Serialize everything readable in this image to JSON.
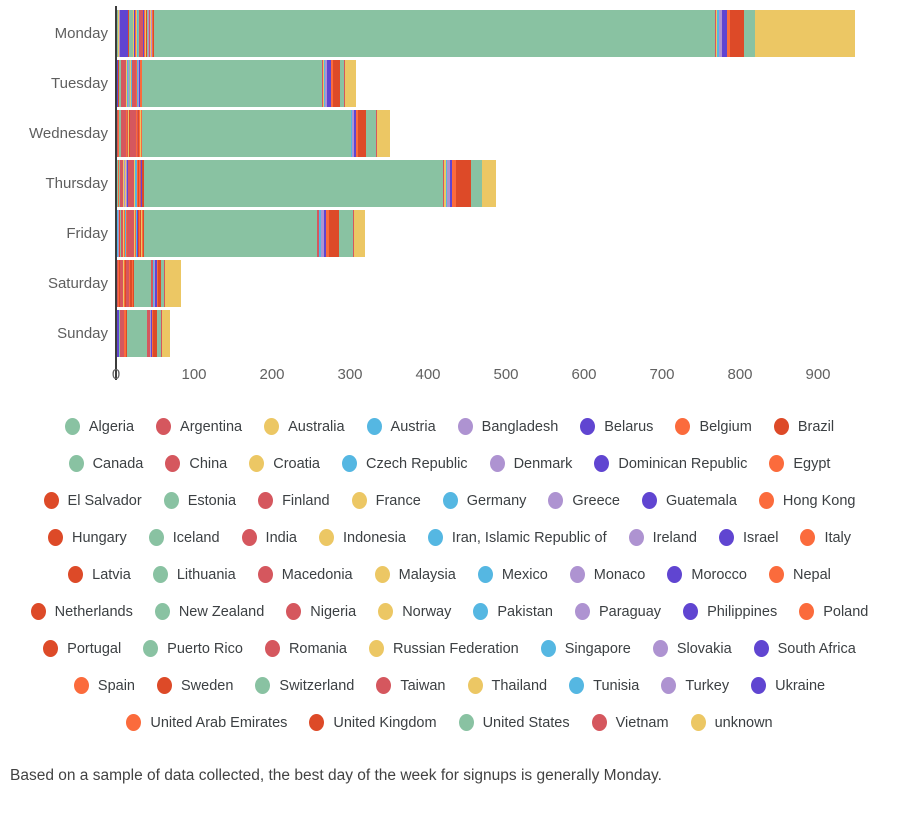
{
  "chart_data": {
    "type": "bar",
    "orientation": "horizontal",
    "stacked": true,
    "grid": false,
    "legend_position": "bottom",
    "categories": [
      "Monday",
      "Tuesday",
      "Wednesday",
      "Thursday",
      "Friday",
      "Saturday",
      "Sunday"
    ],
    "x_ticks": [
      0,
      100,
      200,
      300,
      400,
      500,
      600,
      700,
      800,
      900
    ],
    "xlim": [
      0,
      1000
    ],
    "day_totals_approx": [
      947,
      307,
      350,
      487,
      318,
      82,
      68
    ],
    "palette_cycle": [
      "#89C2A2",
      "#D5575E",
      "#ECC764",
      "#55B7E2",
      "#AE93D1",
      "#6045D1",
      "#FB6B3C",
      "#DD4A28"
    ],
    "series": [
      {
        "name": "Algeria",
        "color": "#89C2A2",
        "values": [
          1,
          0,
          0,
          1,
          0,
          0,
          0
        ]
      },
      {
        "name": "Argentina",
        "color": "#D5575E",
        "values": [
          0,
          0,
          1,
          0,
          0,
          1,
          0
        ]
      },
      {
        "name": "Australia",
        "color": "#ECC764",
        "values": [
          1,
          0,
          0,
          0,
          0,
          0,
          0
        ]
      },
      {
        "name": "Austria",
        "color": "#55B7E2",
        "values": [
          1,
          0,
          0,
          0,
          1,
          0,
          0
        ]
      },
      {
        "name": "Bangladesh",
        "color": "#AE93D1",
        "values": [
          1,
          0,
          0,
          0,
          1,
          0,
          0
        ]
      },
      {
        "name": "Belarus",
        "color": "#6045D1",
        "values": [
          10,
          1,
          0,
          0,
          0,
          0,
          2
        ]
      },
      {
        "name": "Belgium",
        "color": "#FB6B3C",
        "values": [
          0,
          0,
          1,
          1,
          1,
          1,
          0
        ]
      },
      {
        "name": "Brazil",
        "color": "#DD4A28",
        "values": [
          2,
          2,
          1,
          1,
          1,
          2,
          1
        ]
      },
      {
        "name": "Canada",
        "color": "#89C2A2",
        "values": [
          4,
          2,
          2,
          1,
          1,
          0,
          1
        ]
      },
      {
        "name": "China",
        "color": "#D5575E",
        "values": [
          1,
          7,
          6,
          4,
          3,
          4,
          2
        ]
      },
      {
        "name": "Croatia",
        "color": "#ECC764",
        "values": [
          1,
          1,
          1,
          1,
          1,
          1,
          0
        ]
      },
      {
        "name": "Czech Republic",
        "color": "#55B7E2",
        "values": [
          0,
          1,
          0,
          0,
          0,
          0,
          0
        ]
      },
      {
        "name": "Denmark",
        "color": "#AE93D1",
        "values": [
          0,
          1,
          0,
          1,
          0,
          0,
          0
        ]
      },
      {
        "name": "Dominican Republic",
        "color": "#6045D1",
        "values": [
          1,
          0,
          0,
          0,
          0,
          0,
          0
        ]
      },
      {
        "name": "Egypt",
        "color": "#FB6B3C",
        "values": [
          1,
          1,
          1,
          1,
          1,
          1,
          0
        ]
      },
      {
        "name": "El Salvador",
        "color": "#DD4A28",
        "values": [
          1,
          0,
          0,
          0,
          0,
          0,
          0
        ]
      },
      {
        "name": "Estonia",
        "color": "#89C2A2",
        "values": [
          0,
          1,
          0,
          0,
          0,
          0,
          0
        ]
      },
      {
        "name": "Finland",
        "color": "#D5575E",
        "values": [
          0,
          0,
          1,
          0,
          0,
          0,
          0
        ]
      },
      {
        "name": "France",
        "color": "#ECC764",
        "values": [
          1,
          1,
          2,
          1,
          1,
          1,
          1
        ]
      },
      {
        "name": "Germany",
        "color": "#55B7E2",
        "values": [
          1,
          1,
          0,
          0,
          1,
          0,
          0
        ]
      },
      {
        "name": "Greece",
        "color": "#AE93D1",
        "values": [
          0,
          0,
          0,
          1,
          0,
          0,
          0
        ]
      },
      {
        "name": "Guatemala",
        "color": "#6045D1",
        "values": [
          0,
          0,
          0,
          1,
          0,
          0,
          0
        ]
      },
      {
        "name": "Hong Kong",
        "color": "#FB6B3C",
        "values": [
          0,
          0,
          0,
          0,
          1,
          0,
          0
        ]
      },
      {
        "name": "Hungary",
        "color": "#DD4A28",
        "values": [
          0,
          0,
          1,
          0,
          0,
          1,
          0
        ]
      },
      {
        "name": "Iceland",
        "color": "#89C2A2",
        "values": [
          1,
          0,
          0,
          0,
          0,
          0,
          0
        ]
      },
      {
        "name": "India",
        "color": "#D5575E",
        "values": [
          6,
          5,
          7,
          8,
          9,
          4,
          2
        ]
      },
      {
        "name": "Indonesia",
        "color": "#ECC764",
        "values": [
          0,
          0,
          1,
          1,
          1,
          0,
          0
        ]
      },
      {
        "name": "Iran, Islamic Republic of",
        "color": "#55B7E2",
        "values": [
          0,
          0,
          0,
          1,
          0,
          0,
          0
        ]
      },
      {
        "name": "Ireland",
        "color": "#AE93D1",
        "values": [
          0,
          1,
          0,
          0,
          0,
          0,
          0
        ]
      },
      {
        "name": "Israel",
        "color": "#6045D1",
        "values": [
          1,
          0,
          0,
          0,
          0,
          0,
          0
        ]
      },
      {
        "name": "Italy",
        "color": "#FB6B3C",
        "values": [
          1,
          1,
          1,
          1,
          1,
          1,
          1
        ]
      },
      {
        "name": "Latvia",
        "color": "#DD4A28",
        "values": [
          0,
          0,
          0,
          0,
          0,
          1,
          0
        ]
      },
      {
        "name": "Lithuania",
        "color": "#89C2A2",
        "values": [
          0,
          0,
          0,
          0,
          1,
          0,
          0
        ]
      },
      {
        "name": "Macedonia",
        "color": "#D5575E",
        "values": [
          0,
          0,
          1,
          0,
          0,
          0,
          0
        ]
      },
      {
        "name": "Malaysia",
        "color": "#ECC764",
        "values": [
          1,
          0,
          0,
          0,
          0,
          0,
          0
        ]
      },
      {
        "name": "Mexico",
        "color": "#55B7E2",
        "values": [
          1,
          1,
          0,
          1,
          1,
          0,
          0
        ]
      },
      {
        "name": "Monaco",
        "color": "#AE93D1",
        "values": [
          0,
          1,
          0,
          0,
          0,
          0,
          0
        ]
      },
      {
        "name": "Morocco",
        "color": "#6045D1",
        "values": [
          0,
          0,
          0,
          0,
          1,
          0,
          0
        ]
      },
      {
        "name": "Nepal",
        "color": "#FB6B3C",
        "values": [
          0,
          0,
          0,
          1,
          0,
          0,
          0
        ]
      },
      {
        "name": "Netherlands",
        "color": "#DD4A28",
        "values": [
          1,
          1,
          1,
          1,
          1,
          1,
          0
        ]
      },
      {
        "name": "New Zealand",
        "color": "#89C2A2",
        "values": [
          1,
          0,
          0,
          0,
          0,
          0,
          0
        ]
      },
      {
        "name": "Nigeria",
        "color": "#D5575E",
        "values": [
          0,
          0,
          1,
          0,
          0,
          0,
          0
        ]
      },
      {
        "name": "Norway",
        "color": "#ECC764",
        "values": [
          0,
          0,
          0,
          0,
          1,
          0,
          0
        ]
      },
      {
        "name": "Pakistan",
        "color": "#55B7E2",
        "values": [
          0,
          0,
          0,
          1,
          0,
          0,
          0
        ]
      },
      {
        "name": "Paraguay",
        "color": "#AE93D1",
        "values": [
          1,
          0,
          0,
          0,
          0,
          0,
          0
        ]
      },
      {
        "name": "Philippines",
        "color": "#6045D1",
        "values": [
          0,
          1,
          0,
          0,
          0,
          0,
          0
        ]
      },
      {
        "name": "Poland",
        "color": "#FB6B3C",
        "values": [
          1,
          1,
          1,
          1,
          1,
          0,
          1
        ]
      },
      {
        "name": "Portugal",
        "color": "#DD4A28",
        "values": [
          0,
          0,
          0,
          0,
          1,
          0,
          0
        ]
      },
      {
        "name": "Puerto Rico",
        "color": "#89C2A2",
        "values": [
          0,
          0,
          0,
          0,
          0,
          1,
          0
        ]
      },
      {
        "name": "Romania",
        "color": "#D5575E",
        "values": [
          1,
          0,
          0,
          1,
          0,
          0,
          0
        ]
      },
      {
        "name": "Russian Federation",
        "color": "#ECC764",
        "values": [
          1,
          0,
          1,
          0,
          1,
          0,
          0
        ]
      },
      {
        "name": "Singapore",
        "color": "#55B7E2",
        "values": [
          0,
          0,
          0,
          0,
          1,
          0,
          0
        ]
      },
      {
        "name": "Slovakia",
        "color": "#AE93D1",
        "values": [
          1,
          0,
          0,
          0,
          0,
          0,
          0
        ]
      },
      {
        "name": "South Africa",
        "color": "#6045D1",
        "values": [
          0,
          0,
          0,
          1,
          0,
          0,
          0
        ]
      },
      {
        "name": "Spain",
        "color": "#FB6B3C",
        "values": [
          1,
          1,
          1,
          1,
          1,
          1,
          1
        ]
      },
      {
        "name": "Sweden",
        "color": "#DD4A28",
        "values": [
          2,
          1,
          1,
          2,
          1,
          1,
          1
        ]
      },
      {
        "name": "Switzerland",
        "color": "#89C2A2",
        "values": [
          719,
          230,
          267,
          383,
          222,
          22,
          26
        ]
      },
      {
        "name": "Taiwan",
        "color": "#D5575E",
        "values": [
          2,
          2,
          1,
          2,
          2,
          2,
          3
        ]
      },
      {
        "name": "Thailand",
        "color": "#ECC764",
        "values": [
          1,
          1,
          0,
          2,
          1,
          0,
          0
        ]
      },
      {
        "name": "Tunisia",
        "color": "#55B7E2",
        "values": [
          2,
          1,
          1,
          2,
          2,
          2,
          1
        ]
      },
      {
        "name": "Turkey",
        "color": "#AE93D1",
        "values": [
          4,
          3,
          2,
          3,
          4,
          1,
          1
        ]
      },
      {
        "name": "Ukraine",
        "color": "#6045D1",
        "values": [
          6,
          5,
          3,
          3,
          2,
          2,
          1
        ]
      },
      {
        "name": "United Arab Emirates",
        "color": "#FB6B3C",
        "values": [
          4,
          2,
          3,
          5,
          4,
          2,
          2
        ]
      },
      {
        "name": "United Kingdom",
        "color": "#DD4A28",
        "values": [
          18,
          10,
          10,
          20,
          13,
          4,
          5
        ]
      },
      {
        "name": "United States",
        "color": "#89C2A2",
        "values": [
          14,
          5,
          13,
          13,
          18,
          4,
          5
        ]
      },
      {
        "name": "Vietnam",
        "color": "#D5575E",
        "values": [
          1,
          1,
          1,
          1,
          1,
          1,
          1
        ]
      },
      {
        "name": "unknown",
        "color": "#ECC764",
        "values": [
          128,
          14,
          16,
          18,
          14,
          20,
          10
        ]
      }
    ]
  },
  "caption": "Based on a sample of data collected, the best day of the week for signups is generally Monday.",
  "colors": {
    "axis_line": "#3c3c3c",
    "day_label": "#5e5e5e",
    "tick_label": "#616161",
    "legend_label": "#3c4043",
    "caption": "#424242"
  }
}
